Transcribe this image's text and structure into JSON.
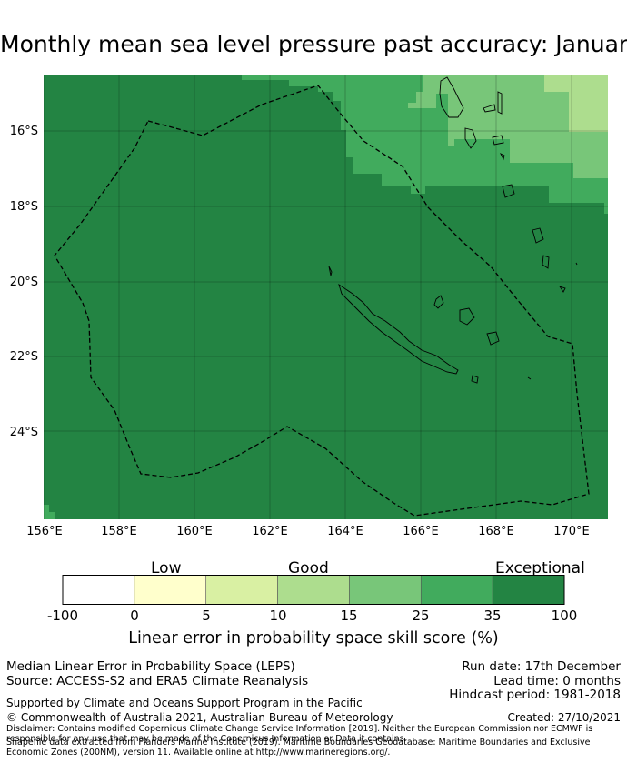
{
  "title": "Monthly mean sea level pressure past accuracy: January",
  "map": {
    "lat_labels": [
      "16°S",
      "18°S",
      "20°S",
      "22°S",
      "24°S"
    ],
    "lon_labels": [
      "156°E",
      "158°E",
      "160°E",
      "162°E",
      "164°E",
      "166°E",
      "168°E",
      "170°E"
    ],
    "colors": {
      "exceptional": "#238443",
      "very_good": "#41ab5d",
      "good_high": "#78c679",
      "good": "#addd8e"
    }
  },
  "colorbar": {
    "categories": [
      "Low",
      "Good",
      "Exceptional"
    ],
    "ticks": [
      "-100",
      "0",
      "5",
      "10",
      "15",
      "25",
      "35",
      "100"
    ],
    "colors": [
      "#ffffff",
      "#ffffcc",
      "#d9f0a3",
      "#addd8e",
      "#78c679",
      "#41ab5d",
      "#238443"
    ],
    "label": "Linear error in probability space skill score (%)"
  },
  "info": {
    "line1": "Median Linear Error in Probability Space (LEPS)",
    "line2": "Source: ACCESS-S2 and ERA5 Climate Reanalysis",
    "run_date": "Run date: 17th December",
    "lead_time": "Lead time: 0 months",
    "hindcast": "Hindcast period: 1981-2018",
    "supported": "Supported by Climate and Oceans Support Program in the Pacific",
    "copyright": "© Commonwealth of Australia 2021, Australian Bureau of Meteorology",
    "created": "Created: 27/10/2021",
    "disclaimer": "Disclaimer: Contains modified Copernicus Climate Change Service Information [2019]. Neither the European Commission nor ECMWF is responsible for any use that may be made of the Copernicus Information or Data it contains.",
    "shapefile": "Shapefile data extracted from Flanders Marine Institute (2019). Maritime Boundaries Geodatabase: Maritime Boundaries and Exclusive Economic Zones (200NM), version 11. Available online at http://www.marineregions.org/."
  }
}
